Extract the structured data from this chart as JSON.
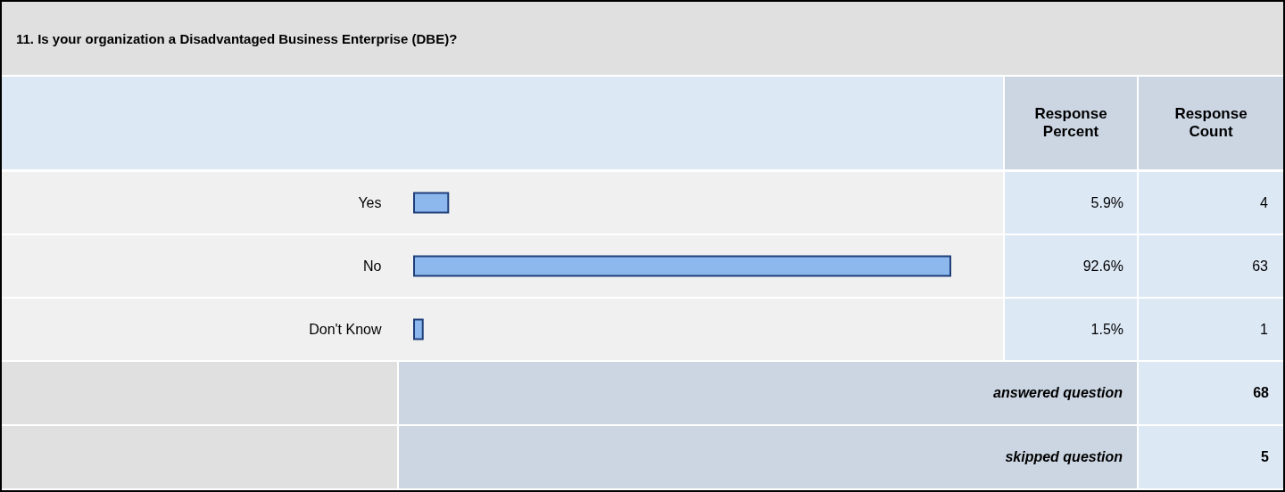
{
  "chart_data": {
    "type": "bar",
    "orientation": "horizontal",
    "title": "11. Is your organization a Disadvantaged Business Enterprise (DBE)?",
    "categories": [
      "Yes",
      "No",
      "Don't Know"
    ],
    "values": [
      5.9,
      92.6,
      1.5
    ],
    "color": "#8db8ee",
    "value_labels": [
      "5.9%",
      "92.6%",
      "1.5%"
    ],
    "tick_labels": "y",
    "annotations": [
      "Response Percent",
      "Response Count",
      "4",
      "63",
      "1",
      "answered question",
      "68",
      "skipped question",
      "5"
    ]
  }
}
